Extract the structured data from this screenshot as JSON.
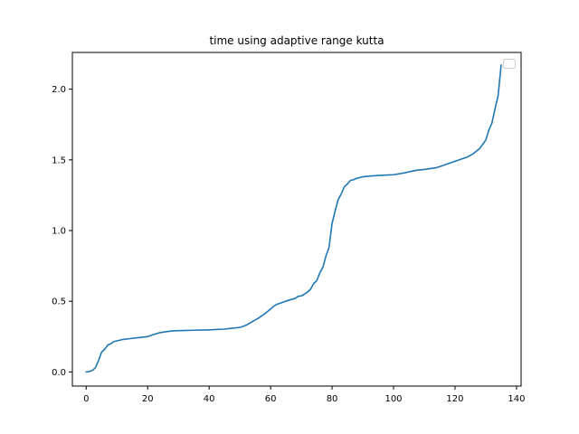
{
  "chart_data": {
    "type": "line",
    "title": "time using adaptive range kutta",
    "xlabel": "",
    "ylabel": "",
    "xlim": [
      -4.5,
      141.5
    ],
    "ylim": [
      -0.1,
      2.26
    ],
    "xticks": [
      0,
      20,
      40,
      60,
      80,
      100,
      120,
      140
    ],
    "xtick_labels": [
      "0",
      "20",
      "40",
      "60",
      "80",
      "100",
      "120",
      "140"
    ],
    "yticks": [
      0.0,
      0.5,
      1.0,
      1.5,
      2.0
    ],
    "ytick_labels": [
      "0.0",
      "0.5",
      "1.0",
      "1.5",
      "2.0"
    ],
    "grid": false,
    "legend": "top-right, empty",
    "series": [
      {
        "color": "#1f77b4",
        "x": [
          0,
          1,
          2,
          3,
          4,
          5,
          6,
          7,
          8,
          9,
          10,
          12,
          14,
          16,
          18,
          20,
          22,
          24,
          26,
          28,
          30,
          35,
          40,
          45,
          50,
          52,
          54,
          56,
          58,
          60,
          61,
          62,
          63,
          64,
          66,
          68,
          69,
          70,
          71,
          72,
          73,
          74,
          75,
          76,
          77,
          78,
          79,
          80,
          81,
          82,
          83,
          84,
          85,
          86,
          87,
          88,
          89,
          90,
          92,
          95,
          100,
          104,
          106,
          108,
          110,
          114,
          116,
          118,
          120,
          122,
          124,
          126,
          128,
          129,
          130,
          131,
          132,
          133,
          134,
          135
        ],
        "y": [
          0.0,
          0.003,
          0.01,
          0.03,
          0.08,
          0.14,
          0.16,
          0.19,
          0.2,
          0.215,
          0.22,
          0.23,
          0.235,
          0.24,
          0.245,
          0.25,
          0.265,
          0.278,
          0.285,
          0.29,
          0.292,
          0.295,
          0.298,
          0.303,
          0.315,
          0.33,
          0.355,
          0.38,
          0.41,
          0.445,
          0.465,
          0.478,
          0.485,
          0.493,
          0.508,
          0.52,
          0.535,
          0.538,
          0.55,
          0.565,
          0.585,
          0.625,
          0.645,
          0.7,
          0.74,
          0.82,
          0.88,
          1.05,
          1.14,
          1.22,
          1.26,
          1.31,
          1.33,
          1.355,
          1.36,
          1.37,
          1.375,
          1.38,
          1.385,
          1.39,
          1.395,
          1.41,
          1.42,
          1.428,
          1.432,
          1.445,
          1.46,
          1.475,
          1.49,
          1.505,
          1.52,
          1.545,
          1.58,
          1.61,
          1.64,
          1.71,
          1.76,
          1.86,
          1.95,
          2.17
        ]
      }
    ]
  }
}
